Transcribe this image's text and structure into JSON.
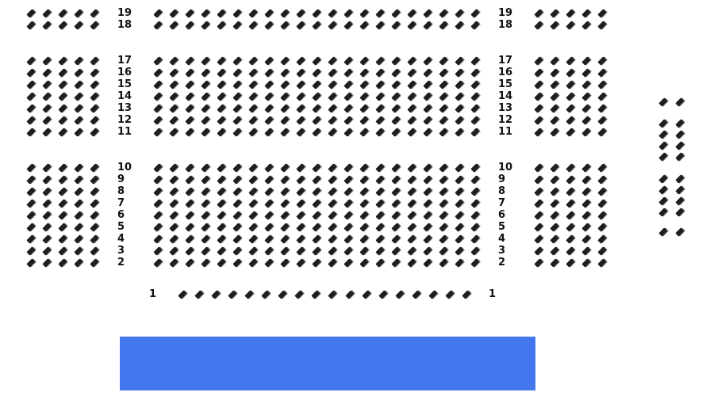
{
  "colors": {
    "seat": "#1e1e1e",
    "stage": "#4477ee"
  },
  "seat_icon": "seat-icon",
  "rows": [
    {
      "label": "19",
      "left": 5,
      "center": 21,
      "right": 5
    },
    {
      "label": "18",
      "left": 5,
      "center": 21,
      "right": 5
    },
    {
      "label": "17",
      "left": 5,
      "center": 21,
      "right": 5
    },
    {
      "label": "16",
      "left": 5,
      "center": 21,
      "right": 5
    },
    {
      "label": "15",
      "left": 5,
      "center": 21,
      "right": 5
    },
    {
      "label": "14",
      "left": 5,
      "center": 21,
      "right": 5
    },
    {
      "label": "13",
      "left": 5,
      "center": 21,
      "right": 5
    },
    {
      "label": "12",
      "left": 5,
      "center": 21,
      "right": 5
    },
    {
      "label": "11",
      "left": 5,
      "center": 21,
      "right": 5
    },
    {
      "label": "10",
      "left": 5,
      "center": 21,
      "right": 5
    },
    {
      "label": "9",
      "left": 5,
      "center": 21,
      "right": 5
    },
    {
      "label": "8",
      "left": 5,
      "center": 21,
      "right": 5
    },
    {
      "label": "7",
      "left": 5,
      "center": 21,
      "right": 5
    },
    {
      "label": "6",
      "left": 5,
      "center": 21,
      "right": 5
    },
    {
      "label": "5",
      "left": 5,
      "center": 21,
      "right": 5
    },
    {
      "label": "4",
      "left": 5,
      "center": 21,
      "right": 5
    },
    {
      "label": "3",
      "left": 5,
      "center": 21,
      "right": 5
    },
    {
      "label": "2",
      "left": 5,
      "center": 21,
      "right": 5
    }
  ],
  "front_row": {
    "label": "1",
    "seats": 18
  },
  "side_box": {
    "groups": [
      1,
      4,
      4,
      1
    ],
    "columns": 2
  },
  "stage": {
    "label": ""
  }
}
